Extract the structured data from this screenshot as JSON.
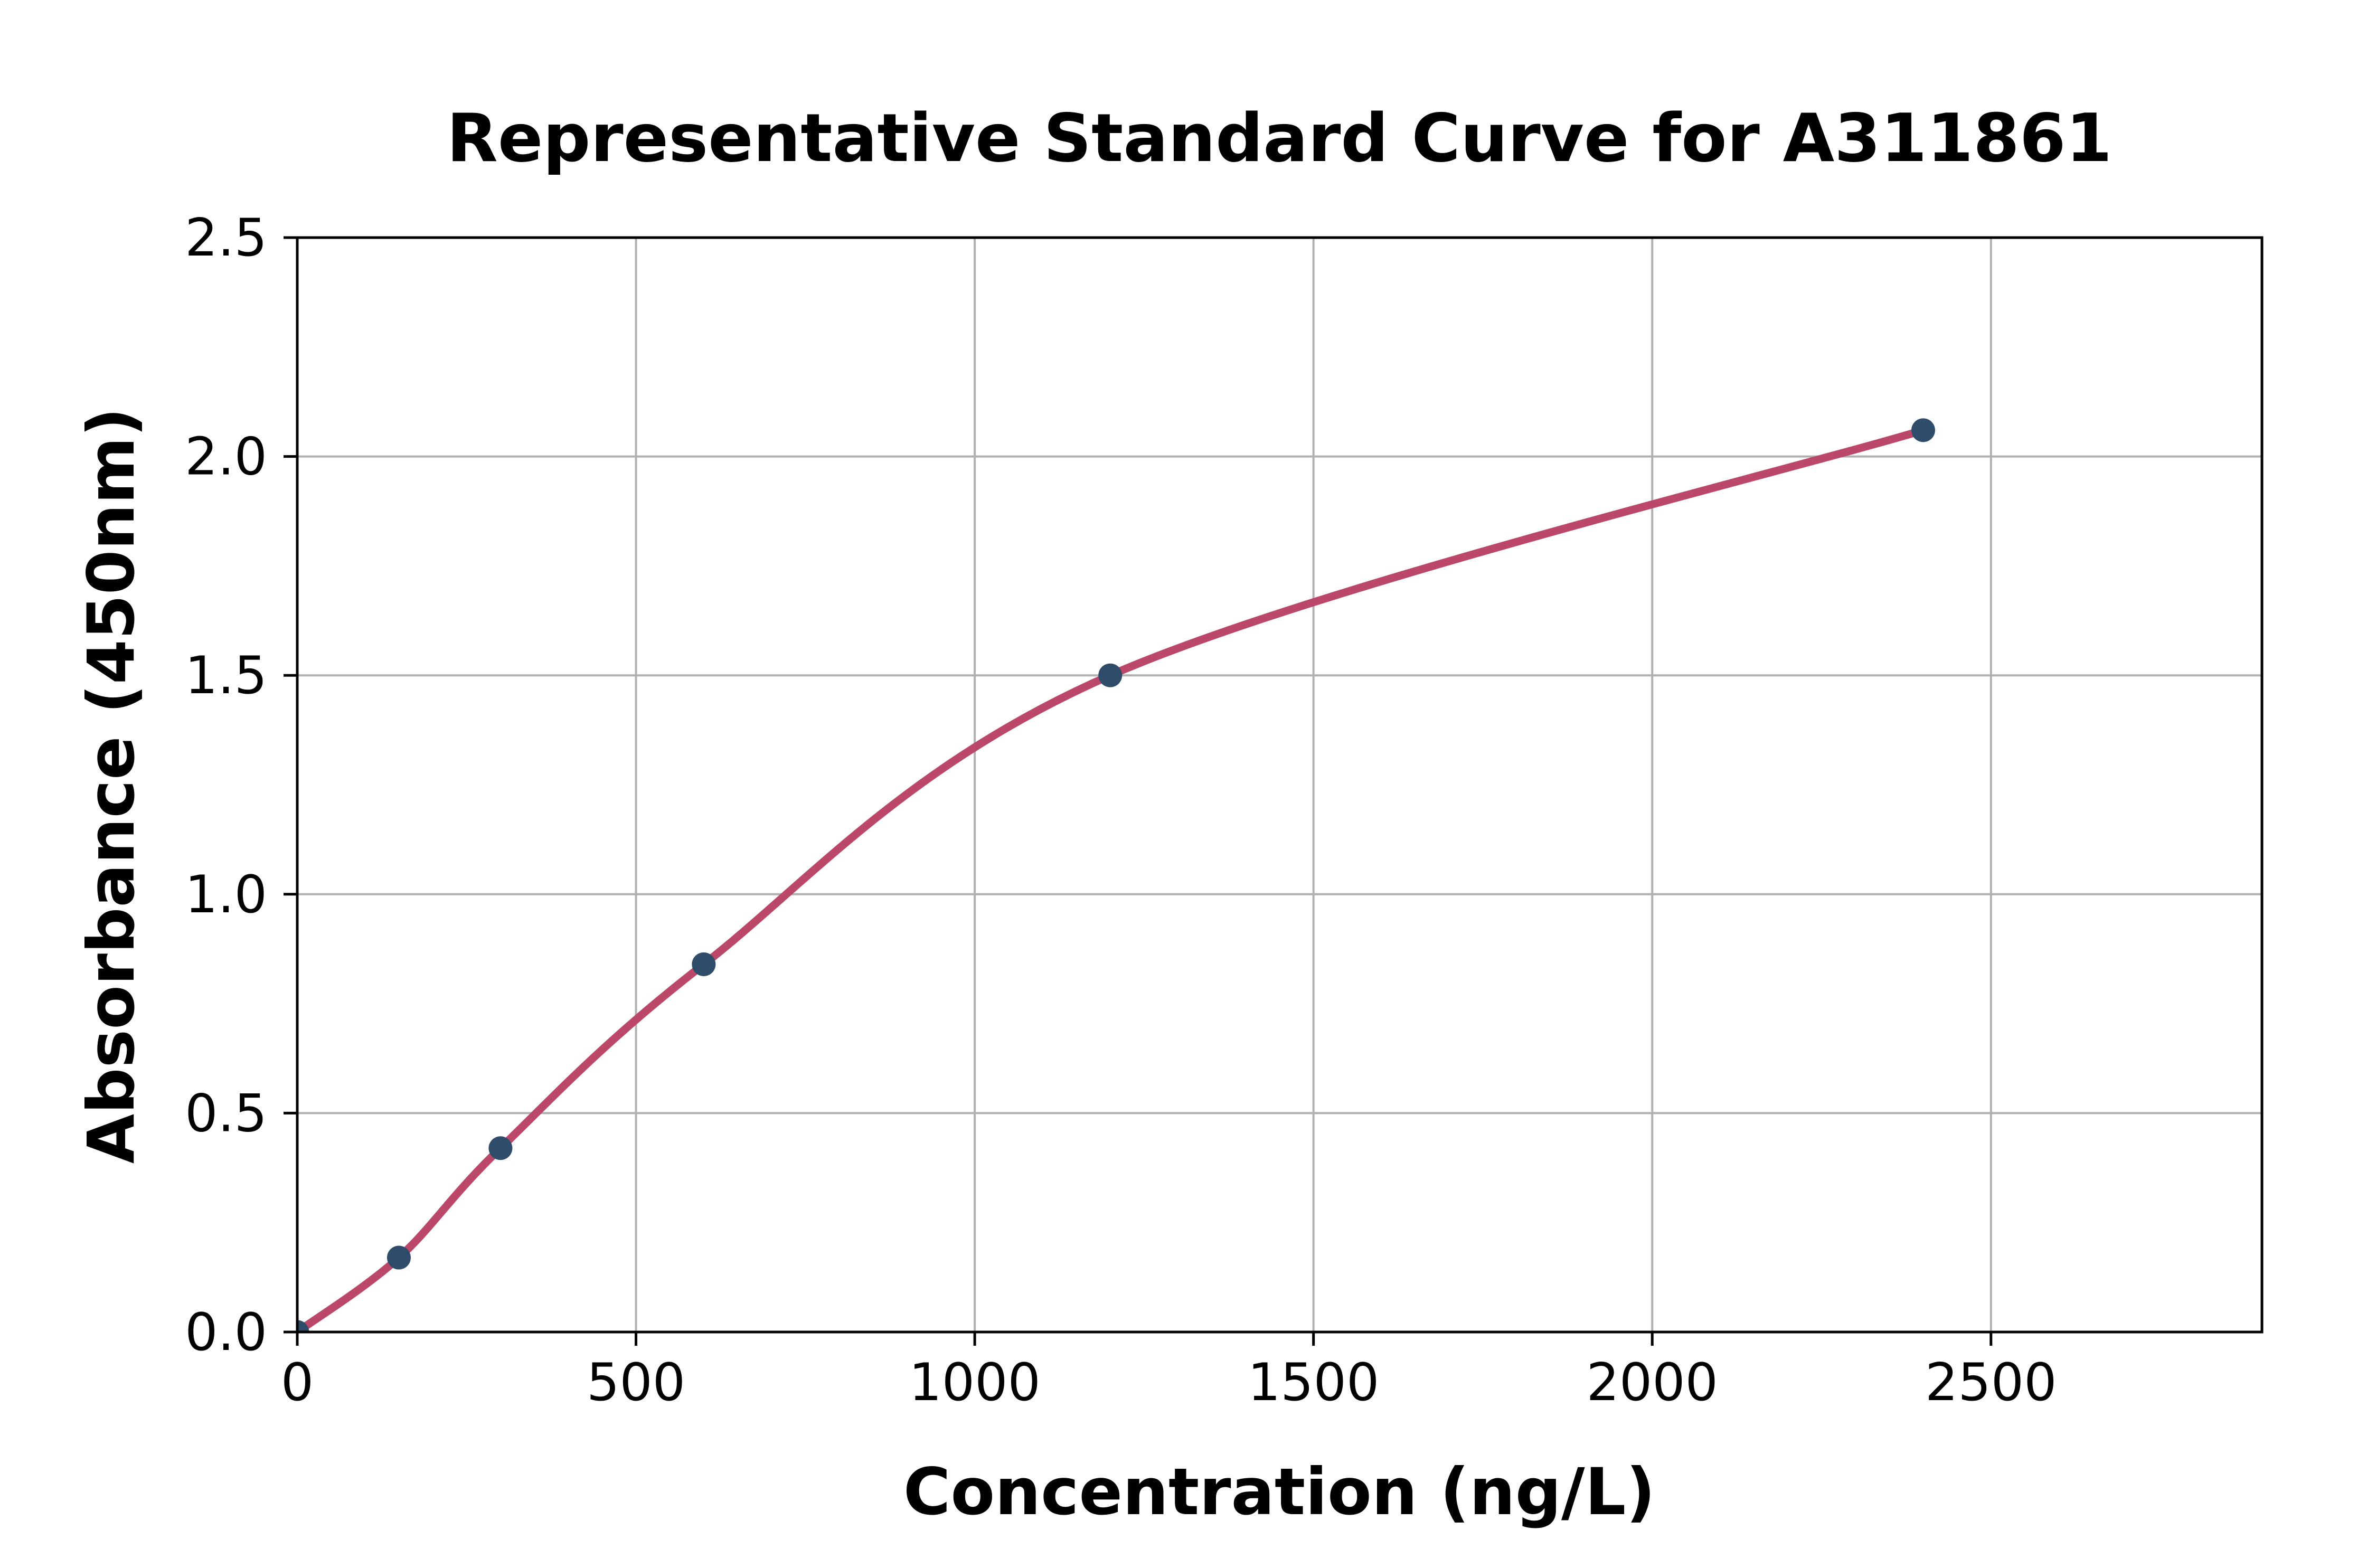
{
  "chart_data": {
    "type": "scatter",
    "title": "Representative Standard Curve for A311861",
    "xlabel": "Concentration (ng/L)",
    "ylabel": "Absorbance (450nm)",
    "xlim": [
      0,
      2900
    ],
    "ylim": [
      0,
      2.5
    ],
    "x_ticks": [
      0,
      500,
      1000,
      1500,
      2000,
      2500
    ],
    "x_tick_labels": [
      "0",
      "500",
      "1000",
      "1500",
      "2000",
      "2500"
    ],
    "y_ticks": [
      0,
      0.5,
      1.0,
      1.5,
      2.0,
      2.5
    ],
    "y_tick_labels": [
      "0.0",
      "0.5",
      "1.0",
      "1.5",
      "2.0",
      "2.5"
    ],
    "grid": true,
    "legend_position": "none",
    "points": [
      {
        "x": 0,
        "y": 0.0
      },
      {
        "x": 150,
        "y": 0.17
      },
      {
        "x": 300,
        "y": 0.42
      },
      {
        "x": 600,
        "y": 0.84
      },
      {
        "x": 1200,
        "y": 1.5
      },
      {
        "x": 2400,
        "y": 2.06
      }
    ],
    "curve": "smooth-fit-through-points",
    "colors": {
      "line": "#bc4869",
      "marker": "#2f4d6a",
      "grid": "#b0b0b0",
      "axis": "#000000",
      "background": "#ffffff"
    }
  }
}
